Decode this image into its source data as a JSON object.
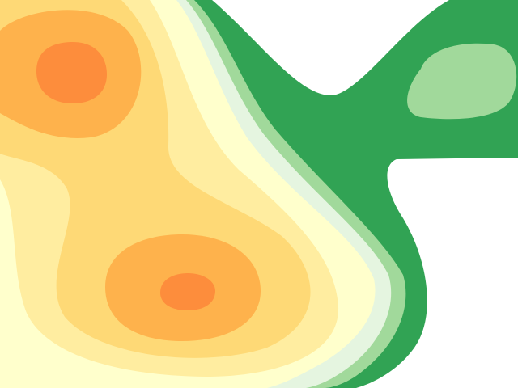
{
  "chart_data": {
    "type": "contour",
    "colors": [
      "#31a354",
      "#a1d99b",
      "#e5f5e0",
      "#ffffcc",
      "#ffeda0",
      "#fed976",
      "#feb24c",
      "#fd8d3c"
    ]
  }
}
